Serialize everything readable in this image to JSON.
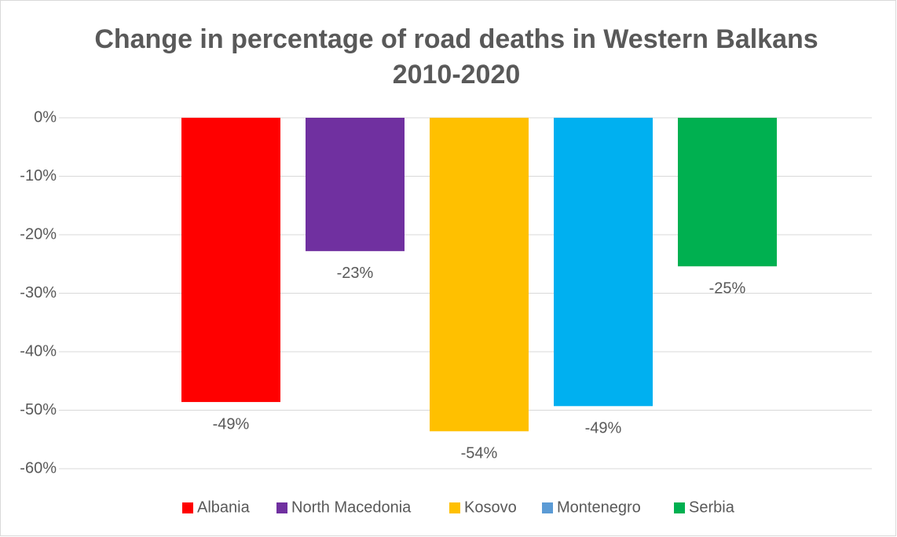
{
  "chart_data": {
    "type": "bar",
    "title": [
      "Change in percentage of road deaths in Western Balkans",
      "2010-2020"
    ],
    "categories": [
      "Albania",
      "North Macedonia",
      "Kosovo",
      "Montenegro",
      "Serbia"
    ],
    "values": [
      -48.6,
      -22.8,
      -53.6,
      -49.3,
      -25.4
    ],
    "value_labels": [
      "-49%",
      "-23%",
      "-54%",
      "-49%",
      "-25%"
    ],
    "colors": [
      "#ff0000",
      "#7030a0",
      "#ffc000",
      "#00b0f0",
      "#00b050"
    ],
    "legend_colors": [
      "#ff0000",
      "#7030a0",
      "#ffc000",
      "#5b9bd5",
      "#00b050"
    ],
    "ylim": [
      -60,
      0
    ],
    "yticks": [
      {
        "value": 0,
        "label": "0%"
      },
      {
        "value": -10,
        "label": "-10%"
      },
      {
        "value": -20,
        "label": "-20%"
      },
      {
        "value": -30,
        "label": "-30%"
      },
      {
        "value": -40,
        "label": "-40%"
      },
      {
        "value": -50,
        "label": "-50%"
      },
      {
        "value": -60,
        "label": "-60%"
      }
    ],
    "grid": true,
    "legend": "bottom"
  }
}
